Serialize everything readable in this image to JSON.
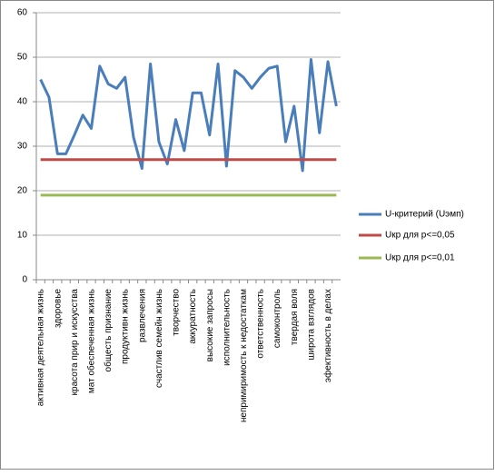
{
  "chart_data": {
    "type": "line",
    "categories": [
      "активная деятельная жизнь",
      null,
      "здоровье",
      null,
      "красота прир и искусства",
      null,
      "мат обеспеченная жизнь",
      null,
      "общесть признание",
      null,
      "продуктивн жизнь",
      null,
      "развлечения",
      null,
      "счастлив семейн жизнь",
      null,
      "творчество",
      null,
      "аккуратность",
      null,
      "высокие запросы",
      null,
      "исполнительность",
      null,
      "непримиримость к недостаткам",
      null,
      "ответственность",
      null,
      "самоконтроль",
      null,
      "твердая воля",
      null,
      "широта взглядов",
      null,
      "эфективность в делах",
      null
    ],
    "series": [
      {
        "name": "U-критерий (Uэмп)",
        "color": "#4a7ebb",
        "values": [
          45,
          41,
          28.3,
          28.3,
          32.5,
          37,
          34,
          48,
          44,
          43,
          45.5,
          32,
          25,
          48.5,
          31,
          26,
          36,
          29,
          42,
          42,
          32.5,
          48.5,
          25.5,
          47,
          45.5,
          43,
          45.5,
          47.5,
          48,
          31,
          39,
          24.5,
          49.5,
          33,
          49,
          39
        ]
      },
      {
        "name": "Uкр для р<=0,05",
        "color": "#be4b48",
        "values": [
          27,
          27,
          27,
          27,
          27,
          27,
          27,
          27,
          27,
          27,
          27,
          27,
          27,
          27,
          27,
          27,
          27,
          27,
          27,
          27,
          27,
          27,
          27,
          27,
          27,
          27,
          27,
          27,
          27,
          27,
          27,
          27,
          27,
          27,
          27,
          27
        ]
      },
      {
        "name": "Uкр для р<=0,01",
        "color": "#98b954",
        "values": [
          19,
          19,
          19,
          19,
          19,
          19,
          19,
          19,
          19,
          19,
          19,
          19,
          19,
          19,
          19,
          19,
          19,
          19,
          19,
          19,
          19,
          19,
          19,
          19,
          19,
          19,
          19,
          19,
          19,
          19,
          19,
          19,
          19,
          19,
          19,
          19
        ]
      }
    ],
    "ylim": [
      0,
      60
    ],
    "yticks": [
      0,
      10,
      20,
      30,
      40,
      50,
      60
    ],
    "grid": true,
    "legend": "right"
  }
}
